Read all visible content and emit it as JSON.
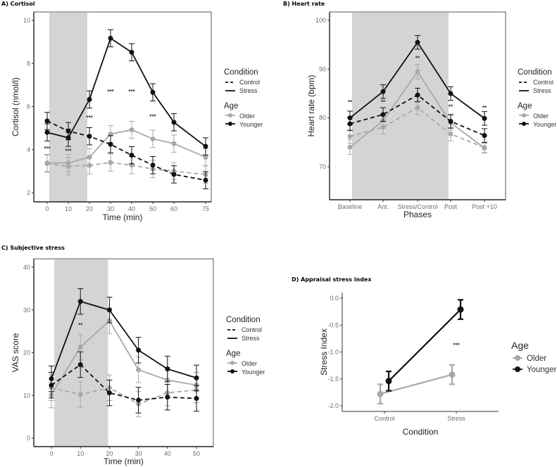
{
  "chart_data": [
    {
      "id": "A",
      "type": "line",
      "title": "A)  Cortisol",
      "xlabel": "Time (min)",
      "ylabel": "Cortisol (nmol/l)",
      "x": [
        0,
        10,
        20,
        30,
        40,
        50,
        60,
        75
      ],
      "x_tick_labels": [
        "0",
        "10",
        "20",
        "30",
        "40",
        "50",
        "60",
        "75"
      ],
      "xlim": [
        -5,
        80
      ],
      "ylim": [
        1.5,
        10.4
      ],
      "y_ticks": [
        2,
        4,
        6,
        8,
        10
      ],
      "shaded_region": [
        1,
        19
      ],
      "series": [
        {
          "name": "Older Control",
          "age": "Older",
          "condition": "Control",
          "values": [
            3.35,
            3.22,
            3.27,
            3.4,
            3.28,
            3.1,
            3.0,
            2.85
          ],
          "errors": [
            0.4,
            0.4,
            0.4,
            0.4,
            0.4,
            0.4,
            0.4,
            0.4
          ]
        },
        {
          "name": "Older Stress",
          "age": "Older",
          "condition": "Stress",
          "values": [
            3.38,
            3.38,
            3.65,
            4.72,
            4.92,
            4.5,
            4.28,
            3.65
          ],
          "errors": [
            0.4,
            0.4,
            0.4,
            0.4,
            0.4,
            0.4,
            0.4,
            0.4
          ]
        },
        {
          "name": "Younger Control",
          "age": "Younger",
          "condition": "Control",
          "values": [
            5.33,
            4.86,
            4.62,
            4.25,
            3.74,
            3.28,
            2.85,
            2.58
          ],
          "errors": [
            0.4,
            0.4,
            0.4,
            0.4,
            0.4,
            0.4,
            0.4,
            0.4
          ]
        },
        {
          "name": "Younger Stress",
          "age": "Younger",
          "condition": "Stress",
          "values": [
            4.8,
            4.55,
            6.33,
            9.17,
            8.52,
            6.66,
            5.27,
            4.15
          ],
          "errors": [
            0.4,
            0.4,
            0.4,
            0.4,
            0.4,
            0.4,
            0.4,
            0.4
          ]
        }
      ],
      "annotations": [
        {
          "x": 0,
          "y": 4.05,
          "text": "***"
        },
        {
          "x": 10,
          "y": 3.95,
          "text": "***"
        },
        {
          "x": 20,
          "y": 5.5,
          "text": "***"
        },
        {
          "x": 30,
          "y": 6.7,
          "text": "***"
        },
        {
          "x": 40,
          "y": 6.7,
          "text": "***"
        },
        {
          "x": 50,
          "y": 5.55,
          "text": "***"
        }
      ],
      "legend": {
        "condition_title": "Condition",
        "condition_items": [
          "Control",
          "Stress"
        ],
        "age_title": "Age",
        "age_items": [
          "Older",
          "Younger"
        ],
        "position": "right"
      }
    },
    {
      "id": "B",
      "type": "line",
      "title": "B)  Heart rate",
      "xlabel": "Phases",
      "ylabel": "Heart rate (bpm)",
      "categories": [
        "Baseline",
        "Ant.",
        "Stress/Control",
        "Post",
        "Post +10"
      ],
      "ylim": [
        63,
        102
      ],
      "y_ticks": [
        70,
        80,
        90,
        100
      ],
      "shaded_region": [
        "Baseline",
        "Post"
      ],
      "series": [
        {
          "name": "Older Control",
          "age": "Older",
          "condition": "Control",
          "values": [
            76.2,
            78.1,
            82.1,
            76.7,
            73.9
          ],
          "errors": [
            1.4,
            1.4,
            1.4,
            1.4,
            1.0
          ]
        },
        {
          "name": "Older Stress",
          "age": "Older",
          "condition": "Stress",
          "values": [
            74.0,
            79.4,
            89.5,
            79.0,
            73.8
          ],
          "errors": [
            1.5,
            1.5,
            1.5,
            1.5,
            1.0
          ]
        },
        {
          "name": "Younger Control",
          "age": "Younger",
          "condition": "Control",
          "values": [
            78.8,
            80.7,
            84.7,
            79.3,
            76.4
          ],
          "errors": [
            1.4,
            1.4,
            1.4,
            1.4,
            1.4
          ]
        },
        {
          "name": "Younger Stress",
          "age": "Younger",
          "condition": "Stress",
          "values": [
            80.0,
            85.4,
            95.5,
            85.0,
            79.9
          ],
          "errors": [
            1.4,
            1.4,
            1.4,
            1.4,
            1.4
          ]
        }
      ],
      "annotations": [
        {
          "category": "Baseline",
          "y": 83.3,
          "text": "**"
        },
        {
          "category": "Ant.",
          "y": 83.3,
          "text": "**"
        },
        {
          "category": "Stress/Control",
          "y": 92.3,
          "text": "**"
        },
        {
          "category": "Post",
          "y": 82.3,
          "text": "**"
        },
        {
          "category": "Post +10",
          "y": 82.1,
          "text": "**"
        }
      ],
      "legend": {
        "condition_title": "Condition",
        "condition_items": [
          "Control",
          "Stress"
        ],
        "age_title": "Age",
        "age_items": [
          "Older",
          "Younger"
        ],
        "position": "right"
      }
    },
    {
      "id": "C",
      "type": "line",
      "title": "C)  Subjective stress",
      "xlabel": "Time (min)",
      "ylabel": "VAS score",
      "x": [
        0,
        10,
        20,
        30,
        40,
        50
      ],
      "x_tick_labels": [
        "0",
        "10",
        "20",
        "30",
        "40",
        "50"
      ],
      "xlim": [
        -5,
        55
      ],
      "ylim": [
        -2,
        42
      ],
      "y_ticks": [
        0,
        10,
        20,
        30,
        40
      ],
      "shaded_region": [
        1,
        19.5
      ],
      "series": [
        {
          "name": "Older Control",
          "age": "Older",
          "condition": "Control",
          "values": [
            11.8,
            10.2,
            11.8,
            8.0,
            10.6,
            11.3
          ],
          "errors": [
            3.0,
            3.0,
            3.0,
            3.0,
            3.0,
            3.0
          ]
        },
        {
          "name": "Older Stress",
          "age": "Older",
          "condition": "Stress",
          "values": [
            10.1,
            21.3,
            27.5,
            16.0,
            13.6,
            12.4
          ],
          "errors": [
            3.0,
            3.0,
            3.0,
            3.0,
            3.0,
            3.0
          ]
        },
        {
          "name": "Younger Control",
          "age": "Younger",
          "condition": "Control",
          "values": [
            12.4,
            17.2,
            10.6,
            8.9,
            9.6,
            9.3
          ],
          "errors": [
            3.0,
            3.0,
            3.0,
            3.0,
            3.0,
            3.0
          ]
        },
        {
          "name": "Younger Stress",
          "age": "Younger",
          "condition": "Stress",
          "values": [
            13.9,
            32.0,
            30.0,
            20.6,
            16.2,
            14.1
          ],
          "errors": [
            3.0,
            3.0,
            3.0,
            3.0,
            3.0,
            3.0
          ]
        }
      ],
      "annotations": [
        {
          "x": 10,
          "y": 26.5,
          "text": "**"
        }
      ],
      "legend": {
        "condition_title": "Condition",
        "condition_items": [
          "Control",
          "Stress"
        ],
        "age_title": "Age",
        "age_items": [
          "Older",
          "Younger"
        ],
        "position": "right"
      }
    },
    {
      "id": "D",
      "type": "line",
      "title": "D)  Appraisal stress index",
      "xlabel": "Condition",
      "ylabel": "Stress Index",
      "categories": [
        "Control",
        "Stress"
      ],
      "ylim": [
        -2.1,
        0.1
      ],
      "y_ticks": [
        0.0,
        -0.5,
        -1.0,
        -1.5,
        -2.0
      ],
      "y_tick_labels": [
        "0.0",
        "-0.5",
        "-1.0",
        "-1.5",
        "-2.0"
      ],
      "series": [
        {
          "name": "Older",
          "age": "Older",
          "values": [
            -1.78,
            -1.42
          ],
          "errors": [
            0.18,
            0.18
          ]
        },
        {
          "name": "Younger",
          "age": "Younger",
          "values": [
            -1.54,
            -0.21
          ],
          "errors": [
            0.18,
            0.18
          ]
        }
      ],
      "annotations": [
        {
          "category": "Stress",
          "y": -0.87,
          "text": "***"
        }
      ],
      "legend": {
        "age_title": "Age",
        "age_items": [
          "Older",
          "Younger"
        ],
        "position": "right"
      }
    }
  ],
  "colors": {
    "older": "#a8a8a8",
    "younger": "#111111",
    "shade": "#d4d4d4",
    "axis": "#333333"
  }
}
